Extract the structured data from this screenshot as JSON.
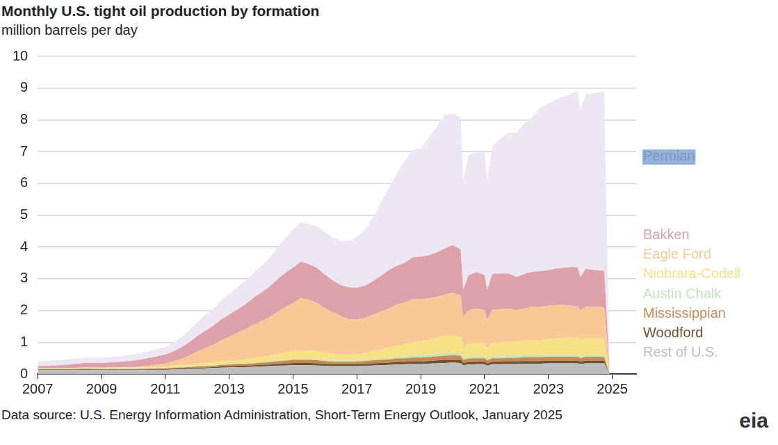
{
  "chart_data": {
    "type": "area",
    "title": "Monthly U.S. tight oil production by formation",
    "subtitle": "million barrels per day",
    "source": "Data source: U.S. Energy Information Administration, Short-Term Energy Outlook, January 2025",
    "logo": "eia",
    "stacked": true,
    "grid": true,
    "xlim": [
      2007,
      2025.75
    ],
    "xticks": [
      2007,
      2009,
      2011,
      2013,
      2015,
      2017,
      2019,
      2021,
      2023,
      2025
    ],
    "ylim": [
      0,
      10
    ],
    "yticks": [
      0,
      1,
      2,
      3,
      4,
      5,
      6,
      7,
      8,
      9,
      10
    ],
    "x": [
      2007,
      2007.5,
      2008,
      2008.5,
      2009,
      2009.5,
      2010,
      2010.5,
      2011,
      2011.25,
      2011.5,
      2011.75,
      2012,
      2012.25,
      2012.5,
      2012.75,
      2013,
      2013.25,
      2013.5,
      2013.75,
      2014,
      2014.25,
      2014.5,
      2014.75,
      2015,
      2015.25,
      2015.5,
      2015.75,
      2016,
      2016.25,
      2016.5,
      2016.75,
      2017,
      2017.25,
      2017.5,
      2017.75,
      2018,
      2018.25,
      2018.5,
      2018.75,
      2019,
      2019.25,
      2019.5,
      2019.75,
      2020,
      2020.25,
      2020.33,
      2020.5,
      2020.75,
      2021,
      2021.08,
      2021.25,
      2021.5,
      2021.75,
      2022,
      2022.25,
      2022.5,
      2022.75,
      2023,
      2023.25,
      2023.5,
      2023.75,
      2023.92,
      2024,
      2024.17,
      2024.5,
      2024.75,
      2024.92
    ],
    "series": [
      {
        "name": "Rest of U.S.",
        "color": "#bdbdbd",
        "values": [
          0.13,
          0.13,
          0.13,
          0.13,
          0.12,
          0.12,
          0.12,
          0.13,
          0.13,
          0.14,
          0.15,
          0.16,
          0.17,
          0.18,
          0.19,
          0.2,
          0.21,
          0.22,
          0.22,
          0.23,
          0.24,
          0.25,
          0.26,
          0.27,
          0.28,
          0.28,
          0.28,
          0.27,
          0.26,
          0.25,
          0.25,
          0.25,
          0.25,
          0.26,
          0.27,
          0.28,
          0.29,
          0.3,
          0.31,
          0.32,
          0.32,
          0.33,
          0.34,
          0.35,
          0.36,
          0.35,
          0.28,
          0.3,
          0.31,
          0.31,
          0.27,
          0.31,
          0.31,
          0.32,
          0.32,
          0.33,
          0.33,
          0.33,
          0.34,
          0.34,
          0.34,
          0.34,
          0.34,
          0.32,
          0.34,
          0.34,
          0.34,
          0
        ]
      },
      {
        "name": "Woodford",
        "color": "#6e4f30",
        "values": [
          0.01,
          0.01,
          0.01,
          0.02,
          0.02,
          0.02,
          0.02,
          0.02,
          0.02,
          0.03,
          0.03,
          0.03,
          0.03,
          0.03,
          0.03,
          0.04,
          0.04,
          0.04,
          0.04,
          0.05,
          0.05,
          0.05,
          0.06,
          0.06,
          0.07,
          0.07,
          0.07,
          0.07,
          0.06,
          0.06,
          0.06,
          0.06,
          0.06,
          0.06,
          0.07,
          0.07,
          0.07,
          0.08,
          0.08,
          0.08,
          0.08,
          0.08,
          0.09,
          0.09,
          0.09,
          0.09,
          0.07,
          0.08,
          0.08,
          0.08,
          0.07,
          0.08,
          0.08,
          0.08,
          0.08,
          0.08,
          0.08,
          0.08,
          0.08,
          0.08,
          0.08,
          0.08,
          0.08,
          0.07,
          0.08,
          0.08,
          0.08,
          0
        ]
      },
      {
        "name": "Mississippian",
        "color": "#c48a52",
        "values": [
          0.02,
          0.02,
          0.02,
          0.02,
          0.02,
          0.02,
          0.02,
          0.02,
          0.03,
          0.03,
          0.03,
          0.03,
          0.04,
          0.04,
          0.04,
          0.05,
          0.05,
          0.05,
          0.06,
          0.06,
          0.07,
          0.07,
          0.08,
          0.09,
          0.1,
          0.1,
          0.1,
          0.1,
          0.09,
          0.08,
          0.08,
          0.08,
          0.08,
          0.09,
          0.09,
          0.1,
          0.1,
          0.11,
          0.11,
          0.12,
          0.12,
          0.12,
          0.13,
          0.14,
          0.14,
          0.14,
          0.1,
          0.11,
          0.11,
          0.11,
          0.09,
          0.11,
          0.11,
          0.11,
          0.11,
          0.12,
          0.12,
          0.12,
          0.12,
          0.12,
          0.12,
          0.12,
          0.12,
          0.11,
          0.12,
          0.12,
          0.12,
          0
        ]
      },
      {
        "name": "Austin Chalk",
        "color": "#c2e4bc",
        "values": [
          0.02,
          0.02,
          0.02,
          0.02,
          0.02,
          0.02,
          0.02,
          0.02,
          0.02,
          0.02,
          0.02,
          0.02,
          0.02,
          0.02,
          0.02,
          0.02,
          0.02,
          0.02,
          0.02,
          0.02,
          0.03,
          0.03,
          0.03,
          0.03,
          0.03,
          0.03,
          0.03,
          0.03,
          0.03,
          0.03,
          0.03,
          0.03,
          0.03,
          0.03,
          0.04,
          0.04,
          0.04,
          0.05,
          0.05,
          0.06,
          0.07,
          0.07,
          0.07,
          0.07,
          0.07,
          0.07,
          0.05,
          0.06,
          0.06,
          0.06,
          0.05,
          0.06,
          0.06,
          0.06,
          0.06,
          0.06,
          0.06,
          0.06,
          0.06,
          0.06,
          0.06,
          0.06,
          0.06,
          0.05,
          0.06,
          0.06,
          0.06,
          0
        ]
      },
      {
        "name": "Niobrara-Codell",
        "color": "#f8e185",
        "values": [
          0.01,
          0.01,
          0.01,
          0.02,
          0.02,
          0.02,
          0.02,
          0.03,
          0.03,
          0.04,
          0.05,
          0.06,
          0.07,
          0.08,
          0.09,
          0.1,
          0.1,
          0.11,
          0.12,
          0.13,
          0.15,
          0.17,
          0.2,
          0.23,
          0.25,
          0.26,
          0.26,
          0.25,
          0.24,
          0.22,
          0.2,
          0.19,
          0.2,
          0.22,
          0.25,
          0.28,
          0.32,
          0.35,
          0.38,
          0.42,
          0.45,
          0.48,
          0.52,
          0.55,
          0.55,
          0.52,
          0.35,
          0.4,
          0.42,
          0.4,
          0.32,
          0.42,
          0.43,
          0.44,
          0.44,
          0.46,
          0.48,
          0.48,
          0.5,
          0.52,
          0.54,
          0.55,
          0.54,
          0.5,
          0.53,
          0.52,
          0.52,
          0
        ]
      },
      {
        "name": "Eagle Ford",
        "color": "#fac797",
        "values": [
          0,
          0,
          0,
          0,
          0,
          0.01,
          0.02,
          0.05,
          0.1,
          0.14,
          0.2,
          0.28,
          0.38,
          0.47,
          0.55,
          0.65,
          0.75,
          0.85,
          0.95,
          1.05,
          1.12,
          1.22,
          1.32,
          1.42,
          1.5,
          1.65,
          1.6,
          1.52,
          1.4,
          1.3,
          1.2,
          1.12,
          1.1,
          1.1,
          1.15,
          1.2,
          1.25,
          1.3,
          1.32,
          1.35,
          1.32,
          1.3,
          1.28,
          1.3,
          1.35,
          1.3,
          0.95,
          1.05,
          1.08,
          1.05,
          0.9,
          1.05,
          1.05,
          1.05,
          1.0,
          1.02,
          1.05,
          1.05,
          1.05,
          1.05,
          1.03,
          1.0,
          1.0,
          0.95,
          1.0,
          1.0,
          0.98,
          0
        ]
      },
      {
        "name": "Bakken",
        "color": "#dea0a9",
        "values": [
          0.06,
          0.08,
          0.11,
          0.14,
          0.15,
          0.17,
          0.2,
          0.24,
          0.28,
          0.31,
          0.36,
          0.42,
          0.48,
          0.54,
          0.6,
          0.66,
          0.7,
          0.74,
          0.78,
          0.85,
          0.9,
          0.95,
          1.02,
          1.08,
          1.12,
          1.15,
          1.12,
          1.1,
          1.05,
          1.0,
          0.98,
          1.0,
          1.0,
          1.02,
          1.05,
          1.12,
          1.2,
          1.22,
          1.25,
          1.32,
          1.34,
          1.36,
          1.4,
          1.45,
          1.5,
          1.45,
          0.85,
          1.1,
          1.15,
          1.1,
          0.95,
          1.12,
          1.12,
          1.1,
          1.05,
          1.08,
          1.1,
          1.12,
          1.12,
          1.15,
          1.18,
          1.22,
          1.22,
          1.05,
          1.18,
          1.15,
          1.15,
          0
        ]
      },
      {
        "name": "Permian",
        "color": "#ede7f3",
        "values": [
          0.15,
          0.16,
          0.17,
          0.17,
          0.17,
          0.18,
          0.2,
          0.22,
          0.25,
          0.28,
          0.32,
          0.38,
          0.45,
          0.5,
          0.55,
          0.6,
          0.65,
          0.7,
          0.74,
          0.78,
          0.84,
          0.9,
          1.0,
          1.1,
          1.2,
          1.24,
          1.26,
          1.3,
          1.35,
          1.35,
          1.4,
          1.45,
          1.6,
          1.75,
          2.0,
          2.3,
          2.6,
          2.9,
          3.2,
          3.4,
          3.4,
          3.7,
          3.95,
          4.2,
          4.14,
          4.18,
          3.45,
          3.8,
          3.8,
          3.9,
          3.45,
          4.05,
          4.24,
          4.44,
          4.54,
          4.75,
          4.88,
          5.16,
          5.23,
          5.33,
          5.4,
          5.48,
          5.54,
          5.25,
          5.49,
          5.58,
          5.65,
          0
        ]
      }
    ]
  }
}
